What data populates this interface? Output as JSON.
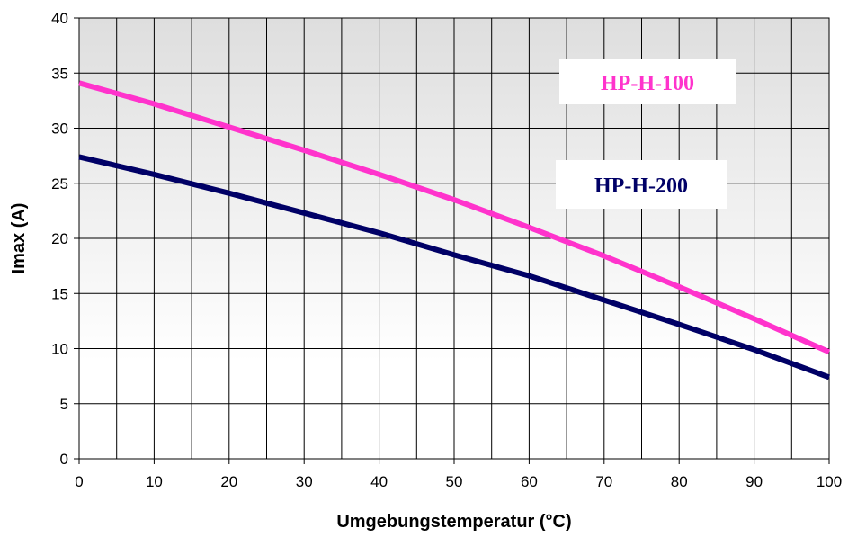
{
  "chart_data": {
    "type": "line",
    "title": "",
    "xlabel": "Umgebungstemperatur (°C)",
    "ylabel": "Imax (A)",
    "xlim": [
      0,
      100
    ],
    "ylim": [
      0,
      40
    ],
    "xticks": [
      0,
      10,
      20,
      30,
      40,
      50,
      60,
      70,
      80,
      90,
      100
    ],
    "xticks_minor_step": 5,
    "yticks": [
      0,
      5,
      10,
      15,
      20,
      25,
      30,
      35,
      40
    ],
    "grid": true,
    "legend": "none",
    "series": [
      {
        "name": "HP-H-100",
        "color": "#ff33cc",
        "x": [
          0,
          10,
          20,
          30,
          40,
          50,
          60,
          70,
          80,
          90,
          100
        ],
        "y": [
          34.1,
          32.2,
          30.1,
          28.0,
          25.8,
          23.5,
          21.0,
          18.4,
          15.6,
          12.7,
          9.7
        ]
      },
      {
        "name": "HP-H-200",
        "color": "#000066",
        "x": [
          0,
          10,
          20,
          30,
          40,
          50,
          60,
          70,
          80,
          90,
          100
        ],
        "y": [
          27.4,
          25.8,
          24.1,
          22.3,
          20.5,
          18.5,
          16.6,
          14.4,
          12.2,
          9.9,
          7.4
        ]
      }
    ]
  }
}
